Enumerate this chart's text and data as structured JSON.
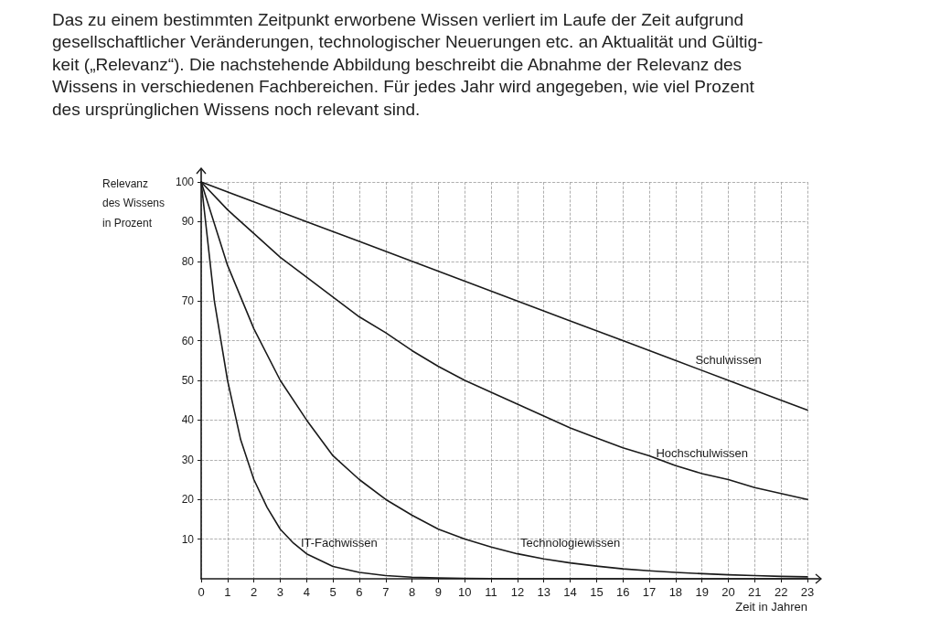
{
  "chart_data": {
    "type": "line",
    "title": "Das zu einem bestimmten Zeitpunkt erworbene Wissen verliert im Laufe der Zeit aufgrund\ngesellschaftlicher Veränderungen, technologischer Neuerungen etc. an Aktualität und Gültig-\nkeit („Relevanz“). Die nachstehende Abbildung beschreibt die Abnahme der Relevanz des\nWissens in verschiedenen Fachbereichen. Für jedes Jahr wird angegeben, wie viel Prozent\ndes ursprünglichen Wissens noch relevant sind.",
    "xlabel": "Zeit in Jahren",
    "ylabel": "Relevanz\ndes Wissens\nin Prozent",
    "xlim": [
      0,
      23
    ],
    "xticks": [
      0,
      1,
      2,
      3,
      4,
      5,
      6,
      7,
      8,
      9,
      10,
      11,
      12,
      13,
      14,
      15,
      16,
      17,
      18,
      19,
      20,
      21,
      22,
      23
    ],
    "ylim": [
      0,
      100
    ],
    "yticks": [
      10,
      20,
      30,
      40,
      50,
      60,
      70,
      80,
      90,
      100
    ],
    "grid": true,
    "marker": "none",
    "line_style": "solid",
    "series": [
      {
        "name": "Schulwissen",
        "color": "#1a1a1a",
        "x": [
          0,
          2,
          4,
          6,
          8,
          10,
          12,
          14,
          16,
          18,
          20,
          22,
          23
        ],
        "values": [
          100,
          95,
          90,
          85,
          80,
          75,
          70,
          65,
          60,
          55,
          50,
          45,
          42.5
        ]
      },
      {
        "name": "Hochschulwissen",
        "color": "#1a1a1a",
        "x": [
          0,
          1,
          2,
          3,
          4,
          5,
          6,
          7,
          8,
          9,
          10,
          11,
          12,
          13,
          14,
          15,
          16,
          17,
          18,
          19,
          20,
          21,
          22,
          23
        ],
        "values": [
          100,
          93,
          87,
          81,
          76,
          71,
          66,
          62,
          57.5,
          53.5,
          50,
          47,
          44,
          41,
          38,
          35.5,
          33,
          31,
          28.5,
          26.5,
          25,
          23,
          21.5,
          20
        ]
      },
      {
        "name": "Technologiewissen",
        "color": "#1a1a1a",
        "x": [
          0,
          1,
          2,
          3,
          4,
          5,
          6,
          7,
          8,
          9,
          10,
          11,
          12,
          13,
          14,
          15,
          16,
          17,
          18,
          19,
          20,
          21,
          22,
          23
        ],
        "values": [
          100,
          79,
          63,
          50,
          40,
          31,
          25,
          20,
          16,
          12.5,
          10,
          8,
          6.3,
          5,
          4,
          3.2,
          2.5,
          2,
          1.6,
          1.3,
          1,
          0.8,
          0.6,
          0.5
        ]
      },
      {
        "name": "IT-Fachwissen",
        "color": "#1a1a1a",
        "x": [
          0,
          0.5,
          1,
          1.5,
          2,
          2.5,
          3,
          3.5,
          4,
          5,
          6,
          7,
          8,
          9,
          10,
          12,
          15,
          20,
          23
        ],
        "values": [
          100,
          70,
          50,
          35,
          25,
          18,
          12.5,
          9,
          6.3,
          3.1,
          1.6,
          0.8,
          0.4,
          0.2,
          0.1,
          0,
          0,
          0,
          0
        ]
      }
    ]
  }
}
